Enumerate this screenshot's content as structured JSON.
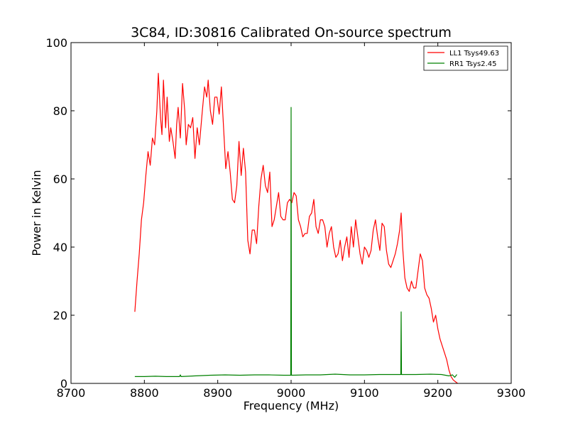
{
  "chart_data": {
    "type": "line",
    "title": "3C84, ID:30816 Calibrated On-source spectrum",
    "xlabel": "Frequency (MHz)",
    "ylabel": "Power in Kelvin",
    "xlim": [
      8700,
      9300
    ],
    "ylim": [
      0,
      100
    ],
    "xticks": [
      "8700",
      "8800",
      "8900",
      "9000",
      "9100",
      "9200",
      "9300"
    ],
    "yticks": [
      "0",
      "20",
      "40",
      "60",
      "80",
      "100"
    ],
    "grid": false,
    "legend_position": "top-right",
    "series": [
      {
        "name": "LL1 Tsys49.63",
        "color": "#ff0000",
        "points": [
          [
            8787,
            21
          ],
          [
            8790,
            30
          ],
          [
            8793,
            38
          ],
          [
            8796,
            48
          ],
          [
            8799,
            53
          ],
          [
            8802,
            61
          ],
          [
            8805,
            68
          ],
          [
            8808,
            64
          ],
          [
            8811,
            72
          ],
          [
            8814,
            70
          ],
          [
            8817,
            80
          ],
          [
            8819,
            91
          ],
          [
            8822,
            78
          ],
          [
            8824,
            73
          ],
          [
            8826,
            89
          ],
          [
            8829,
            75
          ],
          [
            8831,
            84
          ],
          [
            8834,
            71
          ],
          [
            8836,
            75
          ],
          [
            8839,
            71
          ],
          [
            8842,
            66
          ],
          [
            8844,
            76
          ],
          [
            8846,
            81
          ],
          [
            8849,
            72
          ],
          [
            8852,
            88
          ],
          [
            8855,
            80
          ],
          [
            8857,
            70
          ],
          [
            8860,
            76
          ],
          [
            8863,
            75
          ],
          [
            8866,
            78
          ],
          [
            8869,
            66
          ],
          [
            8872,
            75
          ],
          [
            8875,
            70
          ],
          [
            8879,
            80
          ],
          [
            8882,
            87
          ],
          [
            8885,
            84
          ],
          [
            8887,
            89
          ],
          [
            8890,
            80
          ],
          [
            8893,
            76
          ],
          [
            8896,
            84
          ],
          [
            8899,
            84
          ],
          [
            8902,
            79
          ],
          [
            8905,
            87
          ],
          [
            8908,
            75
          ],
          [
            8911,
            63
          ],
          [
            8914,
            68
          ],
          [
            8917,
            62
          ],
          [
            8920,
            54
          ],
          [
            8923,
            53
          ],
          [
            8926,
            58
          ],
          [
            8929,
            71
          ],
          [
            8932,
            61
          ],
          [
            8935,
            69
          ],
          [
            8938,
            62
          ],
          [
            8941,
            42
          ],
          [
            8944,
            38
          ],
          [
            8947,
            45
          ],
          [
            8950,
            45
          ],
          [
            8953,
            41
          ],
          [
            8956,
            52
          ],
          [
            8959,
            60
          ],
          [
            8962,
            64
          ],
          [
            8965,
            58
          ],
          [
            8968,
            56
          ],
          [
            8971,
            62
          ],
          [
            8974,
            46
          ],
          [
            8977,
            48
          ],
          [
            8980,
            52
          ],
          [
            8983,
            56
          ],
          [
            8986,
            49
          ],
          [
            8989,
            48
          ],
          [
            8992,
            48
          ],
          [
            8995,
            53
          ],
          [
            8998,
            54
          ],
          [
            9001,
            53
          ],
          [
            9004,
            56
          ],
          [
            9007,
            55
          ],
          [
            9010,
            48
          ],
          [
            9013,
            46
          ],
          [
            9016,
            43
          ],
          [
            9019,
            44
          ],
          [
            9022,
            44
          ],
          [
            9025,
            49
          ],
          [
            9028,
            50
          ],
          [
            9031,
            54
          ],
          [
            9034,
            46
          ],
          [
            9037,
            44
          ],
          [
            9040,
            48
          ],
          [
            9043,
            48
          ],
          [
            9046,
            46
          ],
          [
            9049,
            40
          ],
          [
            9052,
            44
          ],
          [
            9055,
            46
          ],
          [
            9058,
            40
          ],
          [
            9061,
            37
          ],
          [
            9064,
            38
          ],
          [
            9067,
            42
          ],
          [
            9070,
            36
          ],
          [
            9073,
            40
          ],
          [
            9076,
            43
          ],
          [
            9079,
            37
          ],
          [
            9082,
            46
          ],
          [
            9085,
            40
          ],
          [
            9088,
            48
          ],
          [
            9091,
            43
          ],
          [
            9094,
            38
          ],
          [
            9097,
            35
          ],
          [
            9100,
            40
          ],
          [
            9103,
            39
          ],
          [
            9106,
            37
          ],
          [
            9109,
            39
          ],
          [
            9112,
            45
          ],
          [
            9115,
            48
          ],
          [
            9118,
            43
          ],
          [
            9121,
            39
          ],
          [
            9124,
            47
          ],
          [
            9127,
            46
          ],
          [
            9130,
            39
          ],
          [
            9133,
            35
          ],
          [
            9136,
            34
          ],
          [
            9139,
            36
          ],
          [
            9142,
            38
          ],
          [
            9145,
            41
          ],
          [
            9148,
            45
          ],
          [
            9150,
            50
          ],
          [
            9152,
            40
          ],
          [
            9155,
            31
          ],
          [
            9158,
            28
          ],
          [
            9161,
            27
          ],
          [
            9164,
            30
          ],
          [
            9167,
            28
          ],
          [
            9170,
            28
          ],
          [
            9173,
            33
          ],
          [
            9176,
            38
          ],
          [
            9179,
            36
          ],
          [
            9182,
            28
          ],
          [
            9185,
            26
          ],
          [
            9188,
            25
          ],
          [
            9191,
            22
          ],
          [
            9194,
            18
          ],
          [
            9197,
            20
          ],
          [
            9200,
            16
          ],
          [
            9203,
            13
          ],
          [
            9206,
            11
          ],
          [
            9209,
            9
          ],
          [
            9212,
            7
          ],
          [
            9215,
            4
          ],
          [
            9218,
            2
          ],
          [
            9221,
            1
          ],
          [
            9224,
            0.5
          ],
          [
            9227,
            0
          ]
        ]
      },
      {
        "name": "RR1 Tsys2.45",
        "color": "#008000",
        "points": [
          [
            8787,
            2.0
          ],
          [
            8800,
            2.0
          ],
          [
            8815,
            2.1
          ],
          [
            8830,
            2.0
          ],
          [
            8848,
            2.0
          ],
          [
            8849,
            2.5
          ],
          [
            8850,
            2.0
          ],
          [
            8870,
            2.2
          ],
          [
            8890,
            2.4
          ],
          [
            8910,
            2.5
          ],
          [
            8930,
            2.4
          ],
          [
            8950,
            2.5
          ],
          [
            8970,
            2.5
          ],
          [
            8990,
            2.4
          ],
          [
            8999.5,
            2.4
          ],
          [
            9000,
            81
          ],
          [
            9000.5,
            2.4
          ],
          [
            9020,
            2.5
          ],
          [
            9040,
            2.5
          ],
          [
            9060,
            2.7
          ],
          [
            9080,
            2.5
          ],
          [
            9100,
            2.5
          ],
          [
            9120,
            2.6
          ],
          [
            9140,
            2.6
          ],
          [
            9149.5,
            2.6
          ],
          [
            9150,
            21
          ],
          [
            9150.5,
            2.6
          ],
          [
            9170,
            2.6
          ],
          [
            9190,
            2.7
          ],
          [
            9205,
            2.6
          ],
          [
            9215,
            2.2
          ],
          [
            9220,
            2.5
          ],
          [
            9223,
            1.8
          ],
          [
            9226,
            2.6
          ]
        ]
      }
    ]
  }
}
